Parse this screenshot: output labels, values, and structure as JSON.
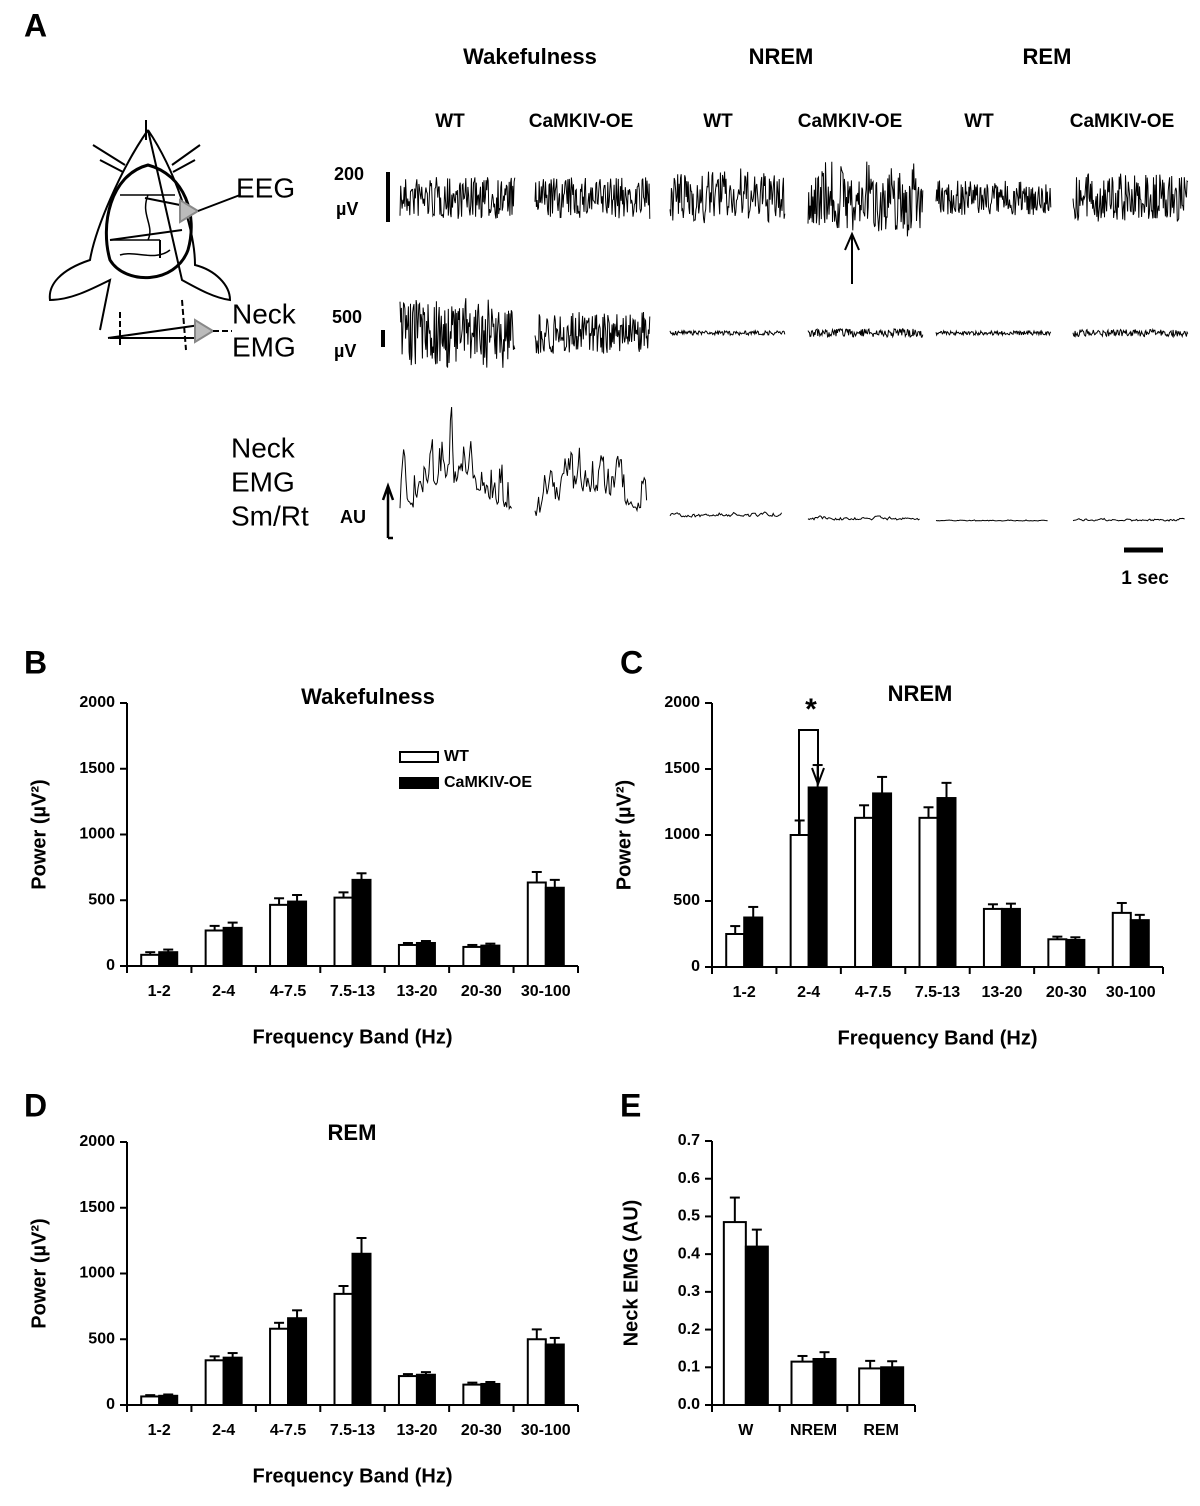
{
  "panel_a": {
    "label": "A",
    "states": [
      "Wakefulness",
      "NREM",
      "REM"
    ],
    "groups": [
      "WT",
      "CaMKIV-OE",
      "WT",
      "CaMKIV-OE",
      "WT",
      "CaMKIV-OE"
    ],
    "rows": [
      [
        "EEG"
      ],
      [
        "Neck",
        "EMG"
      ],
      [
        "Neck",
        "EMG",
        "Sm/Rt"
      ]
    ],
    "scales": [
      [
        "200",
        "µV"
      ],
      [
        "500",
        "µV"
      ],
      [
        "AU"
      ]
    ],
    "time_scale": "1 sec"
  },
  "chart_data": [
    {
      "type": "bar",
      "panel_label": "B",
      "title": "Wakefulness",
      "categories": [
        "1-2",
        "2-4",
        "4-7.5",
        "7.5-13",
        "13-20",
        "20-30",
        "30-100"
      ],
      "series": [
        {
          "name": "WT",
          "color": "#ffffff",
          "values": [
            85,
            270,
            465,
            520,
            160,
            145,
            635
          ],
          "errors": [
            20,
            35,
            50,
            40,
            15,
            15,
            80
          ]
        },
        {
          "name": "CaMKIV-OE",
          "color": "#000000",
          "values": [
            105,
            290,
            490,
            655,
            175,
            155,
            595
          ],
          "errors": [
            20,
            40,
            50,
            50,
            15,
            15,
            60
          ]
        }
      ],
      "ylim": [
        0,
        2000
      ],
      "yticks": [
        0,
        500,
        1000,
        1500,
        2000
      ],
      "x_label": "Frequency Band (Hz)",
      "y_label": "Power (µV²)",
      "legend": "upper-center"
    },
    {
      "type": "bar",
      "panel_label": "C",
      "title": "NREM",
      "categories": [
        "1-2",
        "2-4",
        "4-7.5",
        "7.5-13",
        "13-20",
        "20-30",
        "30-100"
      ],
      "series": [
        {
          "color": "#ffffff",
          "values": [
            250,
            1000,
            1130,
            1130,
            440,
            210,
            410
          ],
          "errors": [
            60,
            110,
            95,
            80,
            35,
            20,
            75
          ]
        },
        {
          "color": "#000000",
          "values": [
            375,
            1360,
            1315,
            1280,
            440,
            205,
            355
          ],
          "errors": [
            80,
            170,
            125,
            115,
            40,
            20,
            40
          ]
        }
      ],
      "ylim": [
        0,
        2000
      ],
      "yticks": [
        0,
        500,
        1000,
        1500,
        2000
      ],
      "x_label": "Frequency Band (Hz)",
      "y_label": "Power (µV²)",
      "annotation": "*"
    },
    {
      "type": "bar",
      "panel_label": "D",
      "title": "REM",
      "categories": [
        "1-2",
        "2-4",
        "4-7.5",
        "7.5-13",
        "13-20",
        "20-30",
        "30-100"
      ],
      "series": [
        {
          "color": "#ffffff",
          "values": [
            65,
            340,
            580,
            845,
            220,
            155,
            500
          ],
          "errors": [
            10,
            30,
            45,
            60,
            15,
            15,
            75
          ]
        },
        {
          "color": "#000000",
          "values": [
            70,
            360,
            660,
            1150,
            230,
            160,
            460
          ],
          "errors": [
            10,
            35,
            60,
            120,
            20,
            15,
            50
          ]
        }
      ],
      "ylim": [
        0,
        2000
      ],
      "yticks": [
        0,
        500,
        1000,
        1500,
        2000
      ],
      "x_label": "Frequency Band (Hz)",
      "y_label": "Power (µV²)"
    },
    {
      "type": "bar",
      "panel_label": "E",
      "categories": [
        "W",
        "NREM",
        "REM"
      ],
      "series": [
        {
          "color": "#ffffff",
          "values": [
            0.485,
            0.115,
            0.097
          ],
          "errors": [
            0.065,
            0.015,
            0.02
          ]
        },
        {
          "color": "#000000",
          "values": [
            0.42,
            0.122,
            0.1
          ],
          "errors": [
            0.045,
            0.018,
            0.016
          ]
        }
      ],
      "ylim": [
        0,
        0.7
      ],
      "yticks": [
        {
          "value": 0,
          "label": "0.0"
        },
        0.1,
        0.2,
        0.3,
        0.4,
        0.5,
        0.6,
        0.7
      ],
      "y_label": "Neck EMG (AU)"
    }
  ]
}
